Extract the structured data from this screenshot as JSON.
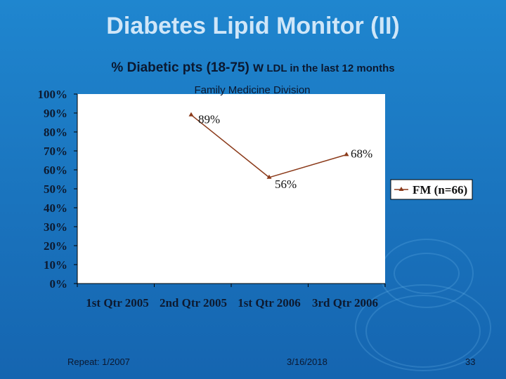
{
  "slide": {
    "title": "Diabetes Lipid Monitor (II)",
    "subtitle_main": "% Diabetic pts (18-75) w",
    "subtitle_rest": "LDL in the last 12 months",
    "footer_left": "Repeat: 1/2007",
    "footer_center": "3/16/2018",
    "page_number": "33"
  },
  "chart_data": {
    "type": "line",
    "title": "Family Medicine Division",
    "categories": [
      "1st Qtr 2005",
      "2nd Qtr 2005",
      "1st Qtr 2006",
      "3rd Qtr 2006"
    ],
    "series": [
      {
        "name": "FM (n=66)",
        "values": [
          null,
          89,
          56,
          68
        ],
        "labels": [
          "",
          "89%",
          "56%",
          "68%"
        ],
        "color": "#8b3a1a"
      }
    ],
    "y_ticks": [
      "0%",
      "10%",
      "20%",
      "30%",
      "40%",
      "50%",
      "60%",
      "70%",
      "80%",
      "90%",
      "100%"
    ],
    "ylim": [
      0,
      100
    ],
    "grid": false,
    "legend_position": "right",
    "plot_background": "#ffffff"
  }
}
